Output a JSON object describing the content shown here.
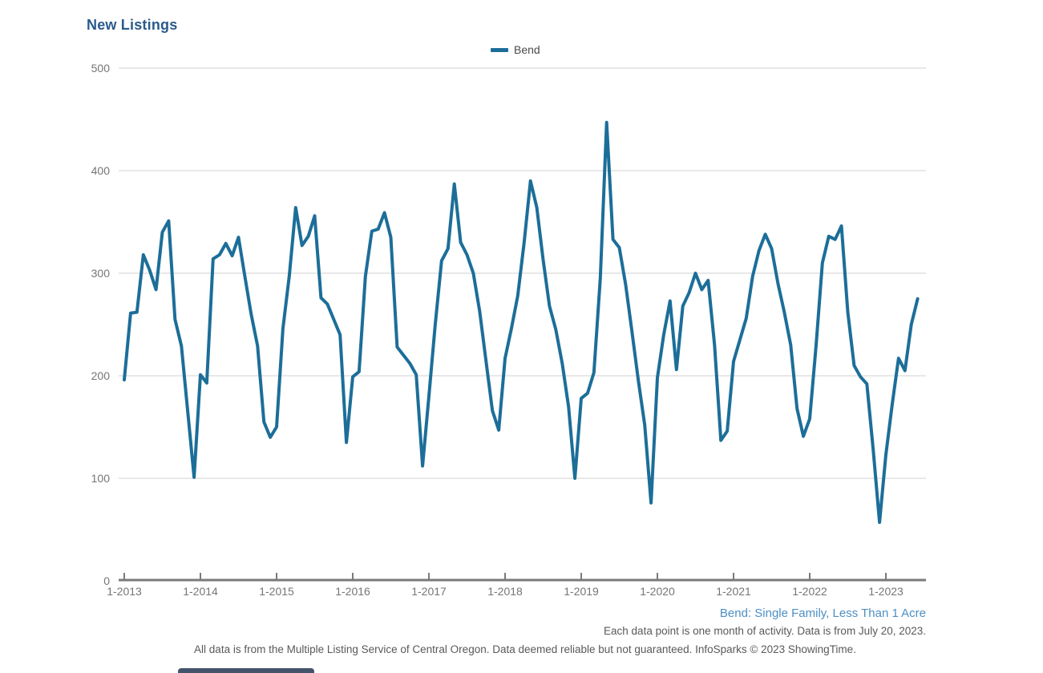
{
  "page": {
    "title": "New Listings",
    "footer_filter": "Bend: Single Family, Less Than 1 Acre",
    "footer_note": "Each data point is one month of activity. Data is from July 20, 2023.",
    "footer_disclaimer": "All data is from the Multiple Listing Service of Central Oregon. Data deemed reliable but not guaranteed. InfoSparks © 2023 ShowingTime."
  },
  "legend": {
    "label": "Bend"
  },
  "colors": {
    "line": "#1C6E99",
    "title": "#2A5A8C",
    "tick_label": "#757575",
    "legend_text": "#4A4A4A",
    "link": "#4D8FC4",
    "note_text": "#595959",
    "gridline": "#D0D0D0",
    "axis": "#7A7A7A",
    "scrubber": "#43536B"
  },
  "chart_data": {
    "type": "line",
    "title": "New Listings",
    "xlabel": "",
    "ylabel": "",
    "ylim": [
      0,
      500
    ],
    "y_ticks": [
      0,
      100,
      200,
      300,
      400,
      500
    ],
    "grid": "horizontal gridlines at each y tick",
    "legend_position": "top-center",
    "x_tick_labels": [
      "1-2013",
      "1-2014",
      "1-2015",
      "1-2016",
      "1-2017",
      "1-2018",
      "1-2019",
      "1-2020",
      "1-2021",
      "1-2022",
      "1-2023"
    ],
    "start_month": "2013-01",
    "end_month": "2023-06",
    "frequency": "monthly",
    "series": [
      {
        "name": "Bend",
        "values": [
          196,
          261,
          262,
          318,
          303,
          284,
          340,
          351,
          255,
          229,
          165,
          101,
          201,
          193,
          314,
          318,
          329,
          317,
          335,
          297,
          260,
          229,
          155,
          140,
          150,
          246,
          297,
          364,
          327,
          336,
          356,
          276,
          270,
          255,
          240,
          135,
          199,
          204,
          297,
          341,
          343,
          359,
          335,
          228,
          220,
          212,
          201,
          112,
          180,
          250,
          312,
          324,
          387,
          330,
          318,
          300,
          263,
          214,
          166,
          147,
          217,
          246,
          278,
          330,
          390,
          364,
          313,
          268,
          245,
          212,
          170,
          100,
          178,
          183,
          203,
          295,
          447,
          333,
          325,
          289,
          243,
          195,
          152,
          76,
          198,
          240,
          273,
          206,
          268,
          281,
          300,
          284,
          293,
          230,
          137,
          146,
          214,
          235,
          256,
          297,
          322,
          338,
          324,
          290,
          262,
          230,
          168,
          141,
          158,
          229,
          310,
          336,
          333,
          346,
          262,
          210,
          199,
          192,
          128,
          57,
          123,
          172,
          217,
          205,
          250,
          275
        ]
      }
    ]
  }
}
